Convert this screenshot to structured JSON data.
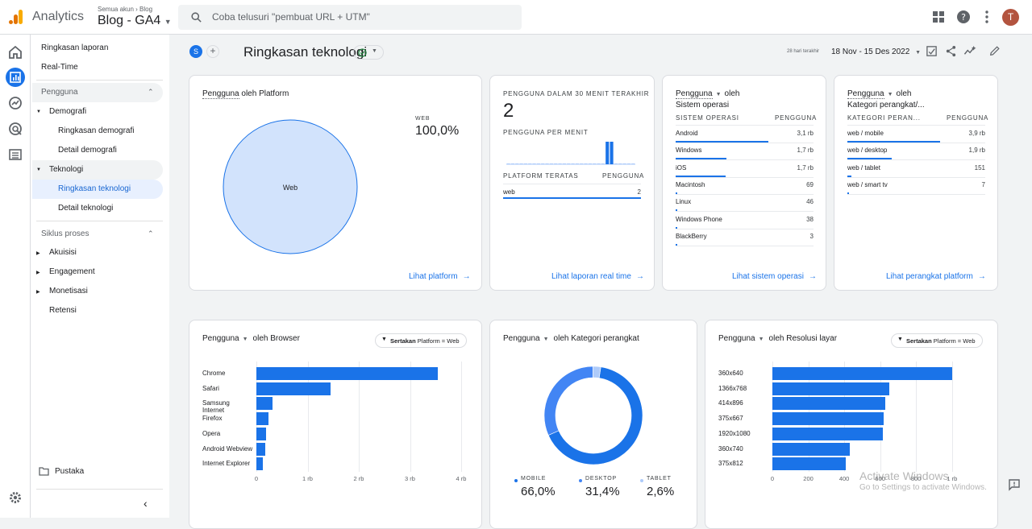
{
  "app": {
    "name": "Analytics",
    "account_path": [
      "Semua akun",
      "Blog"
    ],
    "property": "Blog - GA4",
    "search_placeholder": "Coba telusuri \"pembuat URL + UTM\"",
    "avatar_letter": "T"
  },
  "nav": {
    "reports_snapshot": "Ringkasan laporan",
    "realtime": "Real-Time",
    "section_users": "Pengguna",
    "demographics": "Demografi",
    "demographics_overview": "Ringkasan demografi",
    "demographics_details": "Detail demografi",
    "tech": "Teknologi",
    "tech_overview": "Ringkasan teknologi",
    "tech_details": "Detail teknologi",
    "section_lifecycle": "Siklus proses",
    "acquisition": "Akuisisi",
    "engagement": "Engagement",
    "monetization": "Monetisasi",
    "retention": "Retensi",
    "library": "Pustaka"
  },
  "header": {
    "compare_badge": "S",
    "title": "Ringkasan teknologi",
    "date_caption": "28 hari terakhir",
    "date_range": "18 Nov - 15 Des 2022"
  },
  "card_platform": {
    "title_metric": "Pengguna",
    "title_rest": " oleh Platform",
    "legend_label": "WEB",
    "legend_value": "100,0%",
    "link": "Lihat platform",
    "chart_data": {
      "type": "pie",
      "categories": [
        "Web"
      ],
      "values": [
        100.0
      ]
    }
  },
  "card_realtime": {
    "label": "PENGGUNA DALAM 30 MENIT TERAKHIR",
    "value": "2",
    "per_minute_label": "PENGGUNA PER MENIT",
    "table_head": [
      "PLATFORM TERATAS",
      "PENGGUNA"
    ],
    "rows": [
      {
        "name": "web",
        "value": "2",
        "share": 1.0
      }
    ],
    "link": "Lihat laporan real time",
    "chart_data": {
      "type": "bar",
      "values": [
        0,
        0,
        0,
        0,
        0,
        0,
        0,
        0,
        0,
        0,
        0,
        0,
        0,
        0,
        0,
        0,
        0,
        0,
        0,
        0,
        0,
        0,
        0,
        1,
        1,
        0,
        0,
        0,
        0,
        0
      ],
      "ylim": [
        0,
        1
      ]
    }
  },
  "card_os": {
    "title_metric": "Pengguna",
    "title_by": "oleh",
    "title_dim": "Sistem operasi",
    "table_head": [
      "SISTEM OPERASI",
      "PENGGUNA"
    ],
    "rows": [
      {
        "name": "Android",
        "value": "3,1 rb",
        "share": 1.0
      },
      {
        "name": "Windows",
        "value": "1,7 rb",
        "share": 0.55
      },
      {
        "name": "iOS",
        "value": "1,7 rb",
        "share": 0.54
      },
      {
        "name": "Macintosh",
        "value": "69",
        "share": 0.02
      },
      {
        "name": "Linux",
        "value": "46",
        "share": 0.015
      },
      {
        "name": "Windows Phone",
        "value": "38",
        "share": 0.012
      },
      {
        "name": "BlackBerry",
        "value": "3",
        "share": 0.001
      }
    ],
    "link": "Lihat sistem operasi"
  },
  "card_devcat": {
    "title_metric": "Pengguna",
    "title_by": "oleh",
    "title_dim": "Kategori perangkat/...",
    "table_head": [
      "KATEGORI PERAN...",
      "PENGGUNA"
    ],
    "rows": [
      {
        "name": "web / mobile",
        "value": "3,9 rb",
        "share": 1.0
      },
      {
        "name": "web / desktop",
        "value": "1,9 rb",
        "share": 0.48
      },
      {
        "name": "web / tablet",
        "value": "151",
        "share": 0.04
      },
      {
        "name": "web / smart tv",
        "value": "7",
        "share": 0.002
      }
    ],
    "link": "Lihat perangkat platform"
  },
  "card_browser": {
    "title_metric": "Pengguna",
    "title_rest": "oleh Browser",
    "chip_bold": "Sertakan",
    "chip_rest": "Platform = Web",
    "ticks": [
      "0",
      "1 rb",
      "2 rb",
      "3 rb",
      "4 rb"
    ],
    "chart_data": {
      "type": "bar",
      "categories": [
        "Chrome",
        "Safari",
        "Samsung Internet",
        "Firefox",
        "Opera",
        "Android Webview",
        "Internet Explorer"
      ],
      "values": [
        3550,
        1450,
        310,
        240,
        190,
        170,
        130
      ],
      "xlim": [
        0,
        4000
      ]
    }
  },
  "card_devcat2": {
    "title_metric": "Pengguna",
    "title_rest": "oleh Kategori perangkat",
    "legend": [
      {
        "label": "MOBILE",
        "value": "66,0%"
      },
      {
        "label": "DESKTOP",
        "value": "31,4%"
      },
      {
        "label": "TABLET",
        "value": "2,6%"
      }
    ],
    "chart_data": {
      "type": "pie",
      "categories": [
        "Mobile",
        "Desktop",
        "Tablet"
      ],
      "values": [
        66.0,
        31.4,
        2.6
      ]
    }
  },
  "card_resolution": {
    "title_metric": "Pengguna",
    "title_rest": "oleh Resolusi layar",
    "chip_bold": "Sertakan",
    "chip_rest": "Platform = Web",
    "ticks": [
      "0",
      "200",
      "400",
      "600",
      "800",
      "1 rb"
    ],
    "chart_data": {
      "type": "bar",
      "categories": [
        "360x640",
        "1366x768",
        "414x896",
        "375x667",
        "1920x1080",
        "360x740",
        "375x812"
      ],
      "values": [
        1000,
        650,
        630,
        620,
        615,
        430,
        410
      ],
      "xlim": [
        0,
        1140
      ]
    }
  },
  "watermark": {
    "line1": "Activate Windows",
    "line2": "Go to Settings to activate Windows."
  },
  "colors": {
    "accent": "#1a73e8",
    "light_accent": "#aecbfa",
    "pie_fill": "#d2e3fc"
  }
}
